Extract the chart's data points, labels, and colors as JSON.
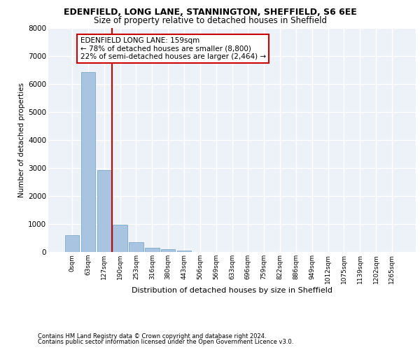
{
  "title1": "EDENFIELD, LONG LANE, STANNINGTON, SHEFFIELD, S6 6EE",
  "title2": "Size of property relative to detached houses in Sheffield",
  "xlabel": "Distribution of detached houses by size in Sheffield",
  "ylabel": "Number of detached properties",
  "footer1": "Contains HM Land Registry data © Crown copyright and database right 2024.",
  "footer2": "Contains public sector information licensed under the Open Government Licence v3.0.",
  "bar_labels": [
    "0sqm",
    "63sqm",
    "127sqm",
    "190sqm",
    "253sqm",
    "316sqm",
    "380sqm",
    "443sqm",
    "506sqm",
    "569sqm",
    "633sqm",
    "696sqm",
    "759sqm",
    "822sqm",
    "886sqm",
    "949sqm",
    "1012sqm",
    "1075sqm",
    "1139sqm",
    "1202sqm",
    "1265sqm"
  ],
  "bar_values": [
    590,
    6420,
    2920,
    980,
    360,
    155,
    90,
    60,
    0,
    0,
    0,
    0,
    0,
    0,
    0,
    0,
    0,
    0,
    0,
    0,
    0
  ],
  "bar_color": "#a8c4e0",
  "bar_edge_color": "#7aaac8",
  "vline_color": "#cc0000",
  "annotation_text": "EDENFIELD LONG LANE: 159sqm\n← 78% of detached houses are smaller (8,800)\n22% of semi-detached houses are larger (2,464) →",
  "annotation_box_edgecolor": "#cc0000",
  "ylim": [
    0,
    8000
  ],
  "yticks": [
    0,
    1000,
    2000,
    3000,
    4000,
    5000,
    6000,
    7000,
    8000
  ],
  "bg_color": "#edf2f9",
  "grid_color": "#ffffff",
  "title1_fontsize": 9,
  "title2_fontsize": 8.5,
  "ylabel_fontsize": 7.5,
  "xlabel_fontsize": 8,
  "tick_fontsize": 6.5,
  "footer_fontsize": 6,
  "ann_fontsize": 7.5
}
